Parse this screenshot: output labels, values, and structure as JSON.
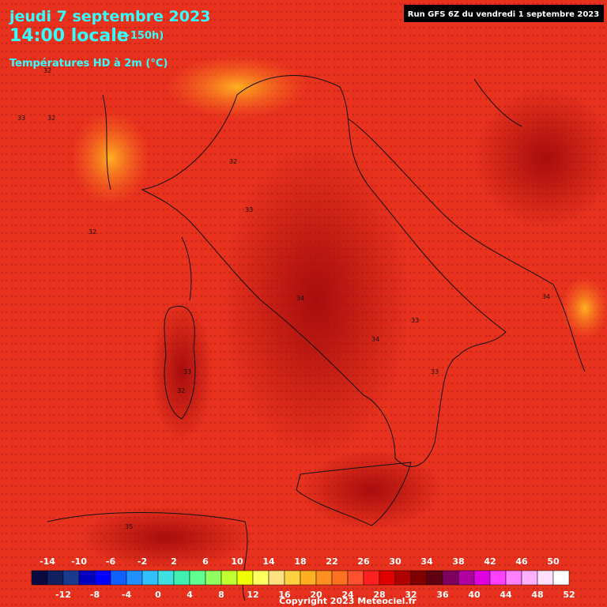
{
  "header": {
    "date": "jeudi 7 septembre 2023",
    "time": "14:00 locale",
    "lead": "(+150h)",
    "field": "Températures HD à 2m (°C)",
    "run": "Run GFS 6Z du vendredi 1 septembre 2023"
  },
  "footer": {
    "copyright": "Copyright 2023 Meteociel.fr"
  },
  "legend": {
    "values": [
      -14,
      -12,
      -10,
      -8,
      -6,
      -4,
      -2,
      0,
      2,
      4,
      6,
      8,
      10,
      12,
      14,
      16,
      18,
      20,
      22,
      24,
      26,
      28,
      30,
      32,
      34,
      36,
      38,
      40,
      42,
      44,
      46,
      48,
      50,
      52
    ],
    "colors": [
      "#0a0a40",
      "#102060",
      "#1a3a90",
      "#0000c0",
      "#0000ff",
      "#1060ff",
      "#2090ff",
      "#30c0ff",
      "#40e0e0",
      "#40f0b0",
      "#60ff90",
      "#90ff60",
      "#c0ff30",
      "#f0ff00",
      "#ffff60",
      "#ffe080",
      "#ffd040",
      "#ffb020",
      "#ff9020",
      "#ff7020",
      "#ff5030",
      "#ff2020",
      "#e00000",
      "#b00000",
      "#800000",
      "#600010",
      "#800060",
      "#b000a0",
      "#e000e0",
      "#ff40ff",
      "#ff80ff",
      "#ffb0ff",
      "#ffe0ff",
      "#ffffff"
    ]
  },
  "points": {
    "values": [
      32,
      32,
      33,
      32,
      33,
      34,
      33,
      34,
      33,
      32,
      35,
      34,
      32,
      33
    ]
  }
}
